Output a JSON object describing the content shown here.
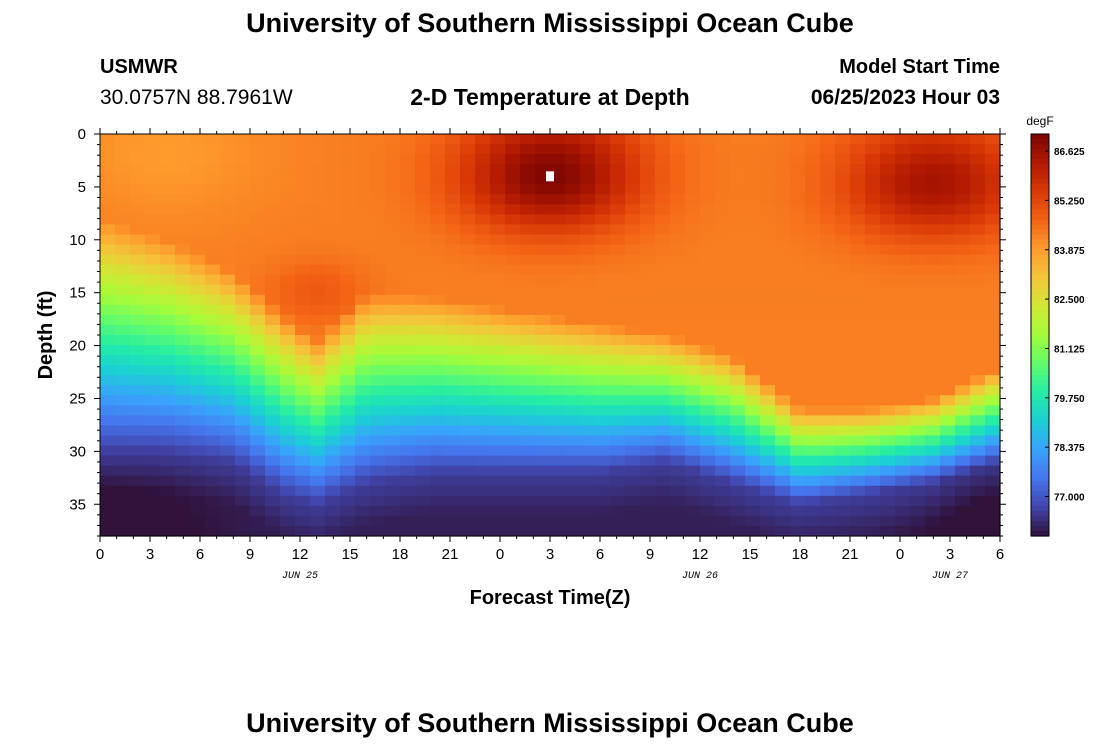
{
  "header": {
    "title": "University of Southern Mississippi Ocean Cube",
    "station_name": "USMWR",
    "station_coords": "30.0757N  88.7961W",
    "plot_title": "2-D Temperature at Depth",
    "model_start_label": "Model Start Time",
    "model_start_value": "06/25/2023 Hour 03"
  },
  "footer": {
    "title": "University of Southern Mississippi Ocean Cube"
  },
  "chart_data": {
    "type": "heatmap",
    "title": "2-D Temperature at Depth",
    "xlabel": "Forecast Time(Z)",
    "ylabel": "Depth (ft)",
    "x_hours_range": [
      0,
      54
    ],
    "x_tick_labels": [
      "0",
      "3",
      "6",
      "9",
      "12",
      "15",
      "18",
      "21",
      "0",
      "3",
      "6",
      "9",
      "12",
      "15",
      "18",
      "21",
      "0",
      "3",
      "6"
    ],
    "date_labels": [
      {
        "text": "JUN 25",
        "hour": 12
      },
      {
        "text": "JUN 26",
        "hour": 36
      },
      {
        "text": "JUN 27",
        "hour": 51
      }
    ],
    "y_range": [
      0,
      38
    ],
    "y_ticks": [
      0,
      5,
      10,
      15,
      20,
      25,
      30,
      35
    ],
    "colorbar": {
      "unit": "degF",
      "min": 75.9,
      "max": 87.1,
      "labels": [
        "86.625",
        "85.250",
        "83.875",
        "82.500",
        "81.125",
        "79.750",
        "78.375",
        "77.000"
      ],
      "colors": [
        "#30123b",
        "#4145ab",
        "#4675ed",
        "#39a2fc",
        "#1bcfd4",
        "#24eca6",
        "#61fc6c",
        "#a4fc3b",
        "#d1e834",
        "#f3c63a",
        "#fe9b2d",
        "#f36315",
        "#d93806",
        "#b11901",
        "#7a0402"
      ]
    },
    "thermocline_depth_ft": [
      {
        "hour": 0,
        "top": 8,
        "bottom": 30
      },
      {
        "hour": 4,
        "top": 10,
        "bottom": 30
      },
      {
        "hour": 8,
        "top": 13,
        "bottom": 31
      },
      {
        "hour": 11,
        "top": 17,
        "bottom": 34
      },
      {
        "hour": 13,
        "top": 19.5,
        "bottom": 35
      },
      {
        "hour": 16,
        "top": 15,
        "bottom": 33
      },
      {
        "hour": 20,
        "top": 15.5,
        "bottom": 32
      },
      {
        "hour": 26,
        "top": 17,
        "bottom": 32
      },
      {
        "hour": 30,
        "top": 18,
        "bottom": 32
      },
      {
        "hour": 34,
        "top": 19,
        "bottom": 31
      },
      {
        "hour": 38,
        "top": 21,
        "bottom": 33
      },
      {
        "hour": 42,
        "top": 26,
        "bottom": 35
      },
      {
        "hour": 46,
        "top": 26,
        "bottom": 34
      },
      {
        "hour": 50,
        "top": 25,
        "bottom": 33
      },
      {
        "hour": 54,
        "top": 22,
        "bottom": 31
      }
    ],
    "warm_cores": [
      {
        "hour": 27,
        "depth_ft": 4,
        "value_degF": 87.0
      },
      {
        "hour": 50,
        "depth_ft": 5,
        "value_degF": 86.5
      }
    ],
    "marker": {
      "hour": 27,
      "depth_ft": 4
    }
  }
}
